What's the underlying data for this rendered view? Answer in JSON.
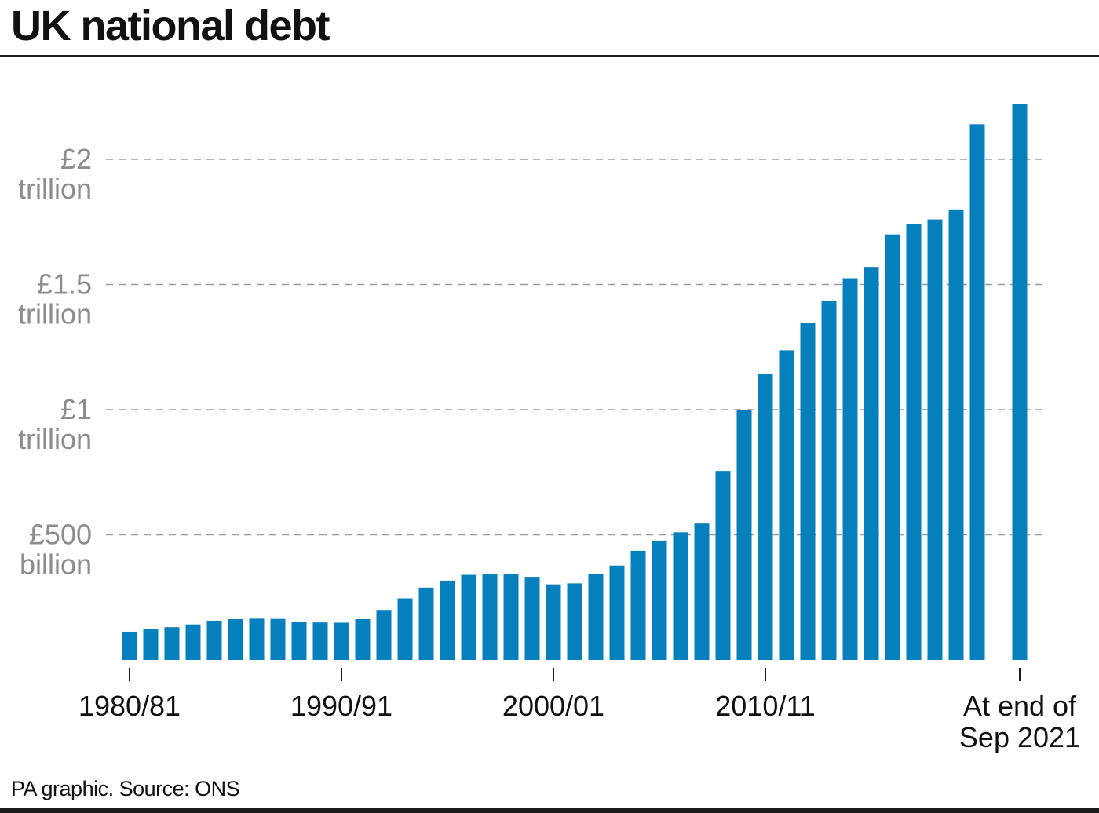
{
  "title": "UK national debt",
  "source": "PA graphic. Source: ONS",
  "colors": {
    "bar": "#0680bd",
    "grid": "#9a9a9a",
    "tick_text": "#8c8c8c"
  },
  "chart_data": {
    "type": "bar",
    "title": "UK national debt",
    "xlabel": "",
    "ylabel": "",
    "units": "£ billion",
    "ylim": [
      0,
      2200
    ],
    "grid": true,
    "y_ticks": [
      {
        "value": 500,
        "lines": [
          "£500",
          "billion"
        ]
      },
      {
        "value": 1000,
        "lines": [
          "£1",
          "trillion"
        ]
      },
      {
        "value": 1500,
        "lines": [
          "£1.5",
          "trillion"
        ]
      },
      {
        "value": 2000,
        "lines": [
          "£2",
          "trillion"
        ]
      }
    ],
    "x_ticks": [
      {
        "index": 0,
        "lines": [
          "1980/81"
        ]
      },
      {
        "index": 10,
        "lines": [
          "1990/91"
        ]
      },
      {
        "index": 20,
        "lines": [
          "2000/01"
        ]
      },
      {
        "index": 30,
        "lines": [
          "2010/11"
        ]
      },
      {
        "index": 42,
        "lines": [
          "At end of",
          "Sep 2021"
        ]
      }
    ],
    "categories": [
      "1980/81",
      "1981/82",
      "1982/83",
      "1983/84",
      "1984/85",
      "1985/86",
      "1986/87",
      "1987/88",
      "1988/89",
      "1989/90",
      "1990/91",
      "1991/92",
      "1992/93",
      "1993/94",
      "1994/95",
      "1995/96",
      "1996/97",
      "1997/98",
      "1998/99",
      "1999/00",
      "2000/01",
      "2001/02",
      "2002/03",
      "2003/04",
      "2004/05",
      "2005/06",
      "2006/07",
      "2007/08",
      "2008/09",
      "2009/10",
      "2010/11",
      "2011/12",
      "2012/13",
      "2013/14",
      "2014/15",
      "2015/16",
      "2016/17",
      "2017/18",
      "2018/19",
      "2019/20",
      "2020/21",
      "",
      "At end of Sep 2021"
    ],
    "values": [
      113,
      125,
      131,
      142,
      157,
      163,
      165,
      164,
      152,
      150,
      149,
      163,
      200,
      246,
      289,
      317,
      340,
      343,
      342,
      332,
      302,
      306,
      343,
      377,
      436,
      477,
      510,
      545,
      755,
      1000,
      1142,
      1237,
      1345,
      1434,
      1525,
      1570,
      1700,
      1742,
      1760,
      1800,
      2140,
      null,
      2220
    ]
  }
}
